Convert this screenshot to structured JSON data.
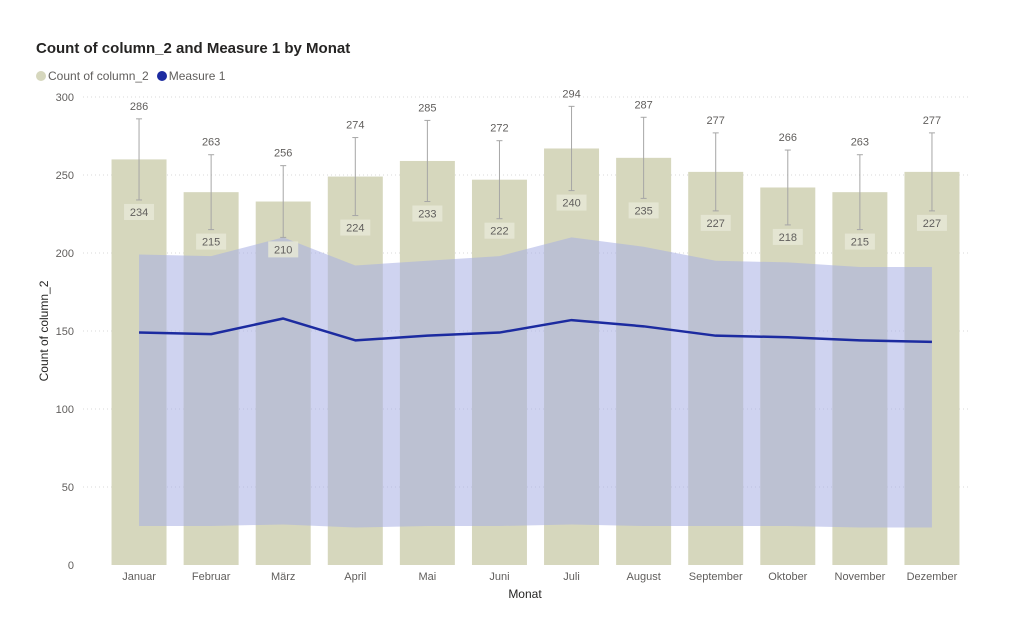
{
  "chart_data": {
    "type": "bar",
    "title": "Count of column_2 and Measure 1 by Monat",
    "xlabel": "Monat",
    "ylabel": "Count of column_2",
    "ylim": [
      0,
      300
    ],
    "yticks": [
      0,
      50,
      100,
      150,
      200,
      250,
      300
    ],
    "grid": true,
    "legend_position": "top-left",
    "categories": [
      "Januar",
      "Februar",
      "März",
      "April",
      "Mai",
      "Juni",
      "Juli",
      "August",
      "September",
      "Oktober",
      "November",
      "Dezember"
    ],
    "series": [
      {
        "name": "Count of column_2",
        "type": "bar",
        "color": "#d6d7bd",
        "values": [
          260,
          239,
          233,
          249,
          259,
          247,
          267,
          261,
          252,
          242,
          239,
          252
        ],
        "error_upper": [
          286,
          263,
          256,
          274,
          285,
          272,
          294,
          287,
          277,
          266,
          263,
          277
        ],
        "error_lower": [
          234,
          215,
          210,
          224,
          233,
          222,
          240,
          235,
          227,
          218,
          215,
          227
        ]
      },
      {
        "name": "Measure 1",
        "type": "line",
        "color": "#1c2ba0",
        "values": [
          149,
          148,
          158,
          144,
          147,
          149,
          157,
          153,
          147,
          146,
          144,
          143
        ],
        "band_upper": [
          199,
          198,
          210,
          192,
          195,
          198,
          210,
          204,
          195,
          194,
          191,
          191
        ],
        "band_lower": [
          25,
          25,
          26,
          24,
          25,
          25,
          26,
          25,
          25,
          25,
          24,
          24
        ]
      }
    ]
  },
  "colors": {
    "bar": "#d6d7bd",
    "line": "#1c2ba0",
    "band": "#a8aee3",
    "error_bar": "#a6a6a6",
    "label_bg": "#e6e7d6"
  }
}
